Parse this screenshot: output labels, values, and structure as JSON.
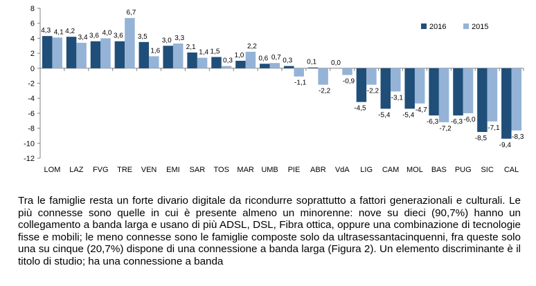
{
  "chart_data": {
    "type": "bar",
    "categories": [
      "LOM",
      "LAZ",
      "FVG",
      "TRE",
      "VEN",
      "EMI",
      "SAR",
      "TOS",
      "MAR",
      "UMB",
      "PIE",
      "ABR",
      "VdA",
      "LIG",
      "CAM",
      "MOL",
      "BAS",
      "PUG",
      "SIC",
      "CAL"
    ],
    "series": [
      {
        "name": "2016",
        "color": "#1f4e79",
        "values": [
          4.3,
          4.2,
          3.6,
          3.6,
          3.5,
          3.0,
          2.1,
          1.5,
          1.0,
          0.6,
          0.3,
          0.1,
          0.0,
          -4.5,
          -5.4,
          -5.4,
          -6.3,
          -6.3,
          -8.5,
          -9.4
        ],
        "labels": [
          "4,3",
          "4,2",
          "3,6",
          "3,6",
          "3,5",
          "3,0",
          "2,1",
          "1,5",
          "1,0",
          "0,6",
          "0,3",
          "0,1",
          "0,0",
          "-4,5",
          "-5,4",
          "-5,4",
          "-6,3",
          "-6,3",
          "-8,5",
          "-9,4"
        ]
      },
      {
        "name": "2015",
        "color": "#95b3d7",
        "values": [
          4.1,
          3.4,
          4.0,
          6.7,
          1.6,
          3.3,
          1.4,
          0.3,
          2.2,
          0.7,
          -1.1,
          -2.2,
          -0.9,
          -2.2,
          -3.1,
          -4.7,
          -7.2,
          -6.0,
          -7.1,
          -8.3
        ],
        "labels": [
          "4,1",
          "3,4",
          "4,0",
          "6,7",
          "1,6",
          "3,3",
          "1,4",
          "0,3",
          "2,2",
          "0,7",
          "-1,1",
          "-2,2",
          "-0,9",
          "-2,2",
          "-3,1",
          "-4,7",
          "-7,2",
          "-6,0",
          "-7,1",
          "-8,3"
        ]
      }
    ],
    "ylim": [
      -12,
      8
    ],
    "yticks": [
      "8",
      "6",
      "4",
      "2",
      "0",
      "-2",
      "-4",
      "-6",
      "-8",
      "-10",
      "-12"
    ],
    "ytick_values": [
      8,
      6,
      4,
      2,
      0,
      -2,
      -4,
      -6,
      -8,
      -10,
      -12
    ],
    "legend_position": "top-right",
    "grid": false
  },
  "text": {
    "paragraph": "Tra le famiglie resta un forte divario digitale da ricondurre soprattutto a fattori generazionali e culturali. Le più connesse sono quelle in cui è presente almeno un minorenne: nove su dieci (90,7%) hanno un collegamento a banda larga e usano di più ADSL, DSL, Fibra ottica, oppure una combinazione di tecnologie fisse e mobili; le meno connesse sono le famiglie composte solo da ultrasessantacinquenni, fra queste solo una su cinque (20,7%) dispone di una connessione a banda larga (Figura 2). Un elemento discriminante è il titolo di studio; ha una connessione a banda"
  }
}
